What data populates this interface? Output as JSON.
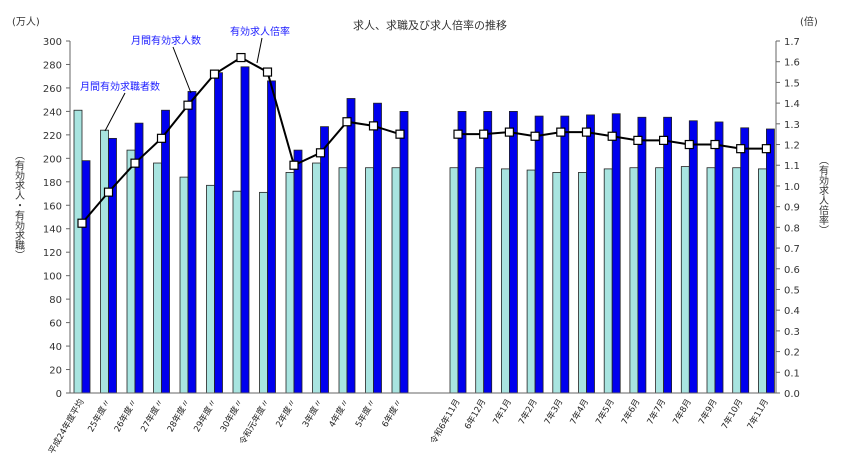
{
  "chart_data": {
    "type": "bar+line",
    "title": "求人、求職及び求人倍率の推移",
    "left_unit": "(万人)",
    "right_unit": "(倍)",
    "ylabel": "（有効求人・有効求職）",
    "y2label": "（有効求人倍率）",
    "ylim": [
      0,
      300
    ],
    "y2lim": [
      0.0,
      1.7
    ],
    "yticks": [
      "0",
      "20",
      "40",
      "60",
      "80",
      "100",
      "120",
      "140",
      "160",
      "180",
      "200",
      "220",
      "240",
      "260",
      "280",
      "300"
    ],
    "y2ticks": [
      "0.0",
      "0.1",
      "0.2",
      "0.3",
      "0.4",
      "0.5",
      "0.6",
      "0.7",
      "0.8",
      "0.9",
      "1.0",
      "1.1",
      "1.2",
      "1.3",
      "1.4",
      "1.5",
      "1.6",
      "1.7"
    ],
    "categories": [
      "平成24年度平均",
      "25年度〃",
      "26年度〃",
      "27年度〃",
      "28年度〃",
      "29年度〃",
      "30年度〃",
      "令和元年度〃",
      "2年度〃",
      "3年度〃",
      "4年度〃",
      "5年度〃",
      "6年度〃",
      "令和6年11月",
      "6年12月",
      "7年1月",
      "7年2月",
      "7年3月",
      "7年4月",
      "7年5月",
      "7年6月",
      "7年7月",
      "7年8月",
      "7年9月",
      "7年10月",
      "7年11月"
    ],
    "series": [
      {
        "name": "月間有効求職者数",
        "axis": "left",
        "type": "bar",
        "color": "#a8e4e0",
        "values": [
          241,
          224,
          207,
          196,
          184,
          177,
          172,
          171,
          188,
          196,
          192,
          192,
          192,
          192,
          192,
          191,
          190,
          188,
          188,
          191,
          192,
          192,
          193,
          192,
          192,
          191
        ]
      },
      {
        "name": "月間有効求人数",
        "axis": "left",
        "type": "bar",
        "color": "#0000ee",
        "values": [
          198,
          217,
          230,
          241,
          257,
          273,
          278,
          266,
          207,
          227,
          251,
          247,
          240,
          240,
          240,
          240,
          236,
          236,
          237,
          238,
          235,
          235,
          232,
          231,
          226,
          225
        ]
      },
      {
        "name": "有効求人倍率",
        "axis": "right",
        "type": "line",
        "color": "#000000",
        "values": [
          0.82,
          0.97,
          1.11,
          1.23,
          1.39,
          1.54,
          1.62,
          1.55,
          1.1,
          1.16,
          1.31,
          1.29,
          1.25,
          1.25,
          1.25,
          1.26,
          1.24,
          1.26,
          1.26,
          1.24,
          1.22,
          1.22,
          1.2,
          1.2,
          1.18,
          1.18
        ]
      }
    ],
    "annotations": [
      "月間有効求職者数",
      "月間有効求人数",
      "有効求人倍率"
    ]
  }
}
